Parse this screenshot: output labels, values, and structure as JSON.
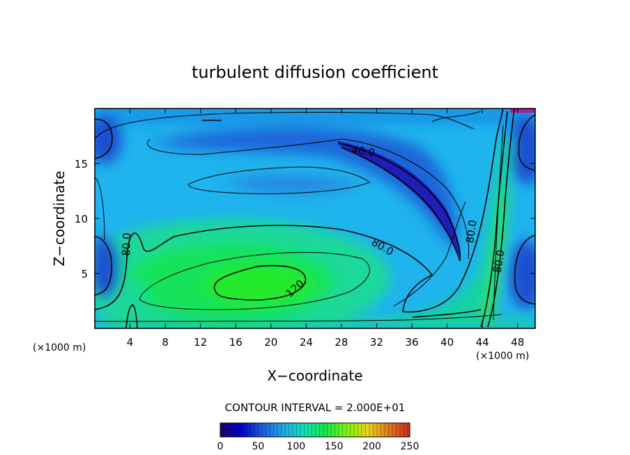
{
  "chart_data": {
    "type": "contour",
    "title": "turbulent diffusion coefficient",
    "xlabel": "X−coordinate",
    "ylabel": "Z−coordinate",
    "x_unit_left": "(×1000 m)",
    "x_unit_right": "(×1000 m)",
    "xlim": [
      0,
      50
    ],
    "ylim": [
      0,
      20
    ],
    "x_ticks": [
      4,
      8,
      12,
      16,
      20,
      24,
      28,
      32,
      36,
      40,
      44,
      48
    ],
    "y_ticks": [
      5,
      10,
      15
    ],
    "contour_interval_text": "CONTOUR INTERVAL = 2.000E+01",
    "contour_labels": [
      {
        "text": "40.0",
        "x": 30,
        "z": 16.5
      },
      {
        "text": "80.0",
        "x": 3.5,
        "z": 7.5
      },
      {
        "text": "80.0",
        "x": 33,
        "z": 7.3
      },
      {
        "text": "80.0",
        "x": 42.5,
        "z": 8.8
      },
      {
        "text": "80.0",
        "x": 45,
        "z": 6.5
      },
      {
        "text": "120.",
        "x": 23,
        "z": 3.8
      }
    ],
    "colorbar": {
      "min": 0,
      "max": 250,
      "ticks": [
        0,
        50,
        100,
        150,
        200,
        250
      ],
      "colors": [
        "#1a0066",
        "#0000cc",
        "#1e5fd6",
        "#1fa8e6",
        "#13e0b4",
        "#12e845",
        "#7ff214",
        "#e7d41a",
        "#e07a1c",
        "#cc2a1d"
      ]
    },
    "grid": false
  }
}
